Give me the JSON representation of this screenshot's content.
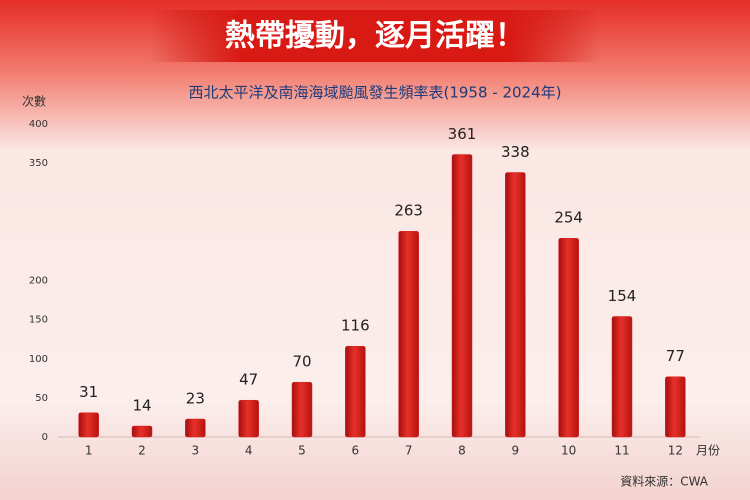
{
  "banner": "熱帶擾動，逐月活躍！",
  "chart_data": {
    "type": "bar",
    "title": "西北太平洋及南海海域颱風發生頻率表(1958 - 2024年)",
    "y_label": "次數",
    "x_label": "月份",
    "categories": [
      "1",
      "2",
      "3",
      "4",
      "5",
      "6",
      "7",
      "8",
      "9",
      "10",
      "11",
      "12"
    ],
    "values": [
      31,
      14,
      23,
      47,
      70,
      116,
      263,
      361,
      338,
      254,
      154,
      77
    ],
    "color": "#d9201c",
    "ylim": [
      0,
      400
    ],
    "yticks": [
      0,
      50,
      100,
      150,
      200,
      350,
      400
    ],
    "grid": false,
    "source": "資料來源：CWA"
  }
}
